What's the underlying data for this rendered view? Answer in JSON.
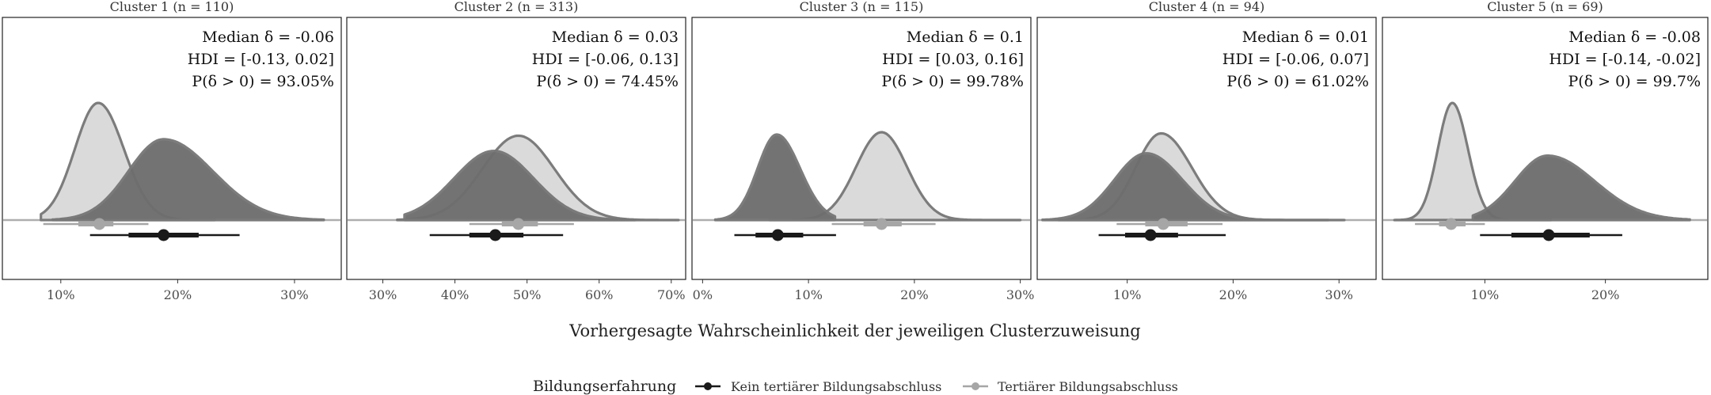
{
  "chart_data": {
    "type": "area",
    "x_axis_title": "Vorhergesagte Wahrscheinlichkeit der jeweiligen Clusterzuweisung",
    "legend": {
      "title": "Bildungserfahrung",
      "placement": "bottom",
      "entries": [
        {
          "label": "Kein tertiärer Bildungsabschluss",
          "color": "#1a1a1a"
        },
        {
          "label": "Tertiärer Bildungsabschluss",
          "color": "#a6a6a6"
        }
      ]
    },
    "colors": {
      "kein_fill": "#6e6e6e",
      "tertiaer_fill": "#d9d9d9",
      "density_outline": "#777777",
      "kein_point": "#1a1a1a",
      "tertiaer_point": "#a6a6a6"
    },
    "panels": [
      {
        "title": "Cluster 1 (n = 110)",
        "annotations": [
          "Median δ = -0.06",
          "HDI = [-0.13, 0.02]",
          "P(δ > 0) = 93.05%"
        ],
        "xlim": [
          5,
          34
        ],
        "xticks": [
          10,
          20,
          30
        ],
        "xtick_labels": [
          "10%",
          "20%",
          "30%"
        ],
        "series": [
          {
            "name": "Tertiärer Bildungsabschluss",
            "peak": 13.2,
            "sd_left": 2.0,
            "sd_right": 2.2,
            "rel_height": 1.0,
            "range": [
              8.3,
              23.2
            ],
            "interval_outer": [
              8.5,
              17.5
            ],
            "interval_inner": [
              11.5,
              14.5
            ],
            "median": 13.3
          },
          {
            "name": "Kein tertiärer Bildungsabschluss",
            "peak": 18.8,
            "sd_left": 3.0,
            "sd_right": 4.2,
            "rel_height": 0.69,
            "range": [
              9.3,
              32.5
            ],
            "interval_outer": [
              12.5,
              25.3
            ],
            "interval_inner": [
              15.8,
              21.8
            ],
            "median": 18.8
          }
        ]
      },
      {
        "title": "Cluster 2 (n = 313)",
        "annotations": [
          "Median δ = 0.03",
          "HDI = [-0.06, 0.13]",
          "P(δ > 0) = 74.45%"
        ],
        "xlim": [
          25,
          72
        ],
        "xticks": [
          30,
          40,
          50,
          60,
          70
        ],
        "xtick_labels": [
          "30%",
          "40%",
          "50%",
          "60%",
          "70%"
        ],
        "series": [
          {
            "name": "Tertiärer Bildungsabschluss",
            "peak": 48.8,
            "sd_left": 5.0,
            "sd_right": 5.0,
            "rel_height": 0.72,
            "range": [
              32.0,
              71.0
            ],
            "interval_outer": [
              42.0,
              56.5
            ],
            "interval_inner": [
              46.5,
              51.5
            ],
            "median": 48.8
          },
          {
            "name": "Kein tertiärer Bildungsabschluss",
            "peak": 45.4,
            "sd_left": 5.5,
            "sd_right": 5.5,
            "rel_height": 0.59,
            "range": [
              33.0,
              65.0
            ],
            "interval_outer": [
              36.5,
              55.0
            ],
            "interval_inner": [
              42.0,
              49.5
            ],
            "median": 45.6
          }
        ]
      },
      {
        "title": "Cluster 3 (n = 115)",
        "annotations": [
          "Median δ = 0.1",
          "HDI = [0.03, 0.16]",
          "P(δ > 0) = 99.78%"
        ],
        "xlim": [
          -1,
          31
        ],
        "xticks": [
          0,
          10,
          20,
          30
        ],
        "xtick_labels": [
          "0%",
          "10%",
          "20%",
          "30%"
        ],
        "series": [
          {
            "name": "Tertiärer Bildungsabschluss",
            "peak": 16.9,
            "sd_left": 2.4,
            "sd_right": 2.4,
            "rel_height": 0.75,
            "range": [
              6.3,
              30.0
            ],
            "interval_outer": [
              12.2,
              22.0
            ],
            "interval_inner": [
              15.2,
              18.8
            ],
            "median": 16.9
          },
          {
            "name": "Kein tertiärer Bildungsabschluss",
            "peak": 7.0,
            "sd_left": 1.8,
            "sd_right": 2.2,
            "rel_height": 0.73,
            "range": [
              1.2,
              12.5
            ],
            "interval_outer": [
              3.0,
              12.6
            ],
            "interval_inner": [
              5.0,
              9.5
            ],
            "median": 7.1
          }
        ]
      },
      {
        "title": "Cluster 4 (n = 94)",
        "annotations": [
          "Median δ = 0.01",
          "HDI = [-0.06, 0.07]",
          "P(δ > 0) = 61.02%"
        ],
        "xlim": [
          1.5,
          33.5
        ],
        "xticks": [
          10,
          20,
          30
        ],
        "xtick_labels": [
          "10%",
          "20%",
          "30%"
        ],
        "series": [
          {
            "name": "Tertiärer Bildungsabschluss",
            "peak": 13.2,
            "sd_left": 2.4,
            "sd_right": 2.9,
            "rel_height": 0.74,
            "range": [
              3.5,
              30.5
            ],
            "interval_outer": [
              9.0,
              19.0
            ],
            "interval_inner": [
              11.7,
              15.7
            ],
            "median": 13.4
          },
          {
            "name": "Kein tertiärer Bildungsabschluss",
            "peak": 11.8,
            "sd_left": 3.0,
            "sd_right": 3.4,
            "rel_height": 0.57,
            "range": [
              2.0,
              29.0
            ],
            "interval_outer": [
              7.3,
              19.3
            ],
            "interval_inner": [
              9.8,
              14.8
            ],
            "median": 12.2
          }
        ]
      },
      {
        "title": "Cluster 5 (n = 69)",
        "annotations": [
          "Median δ = -0.08",
          "HDI = [-0.14, -0.02]",
          "P(δ > 0) = 99.7%"
        ],
        "xlim": [
          1.5,
          28.5
        ],
        "xticks": [
          10,
          20
        ],
        "xtick_labels": [
          "10%",
          "20%"
        ],
        "series": [
          {
            "name": "Tertiärer Bildungsabschluss",
            "peak": 7.3,
            "sd_left": 1.2,
            "sd_right": 1.3,
            "rel_height": 1.0,
            "range": [
              2.5,
              15.5
            ],
            "interval_outer": [
              4.2,
              10.0
            ],
            "interval_inner": [
              6.2,
              8.4
            ],
            "median": 7.2
          },
          {
            "name": "Kein tertiärer Bildungsabschluss",
            "peak": 15.2,
            "sd_left": 2.7,
            "sd_right": 3.9,
            "rel_height": 0.55,
            "range": [
              9.0,
              27.0
            ],
            "interval_outer": [
              9.6,
              21.4
            ],
            "interval_inner": [
              12.2,
              18.7
            ],
            "median": 15.3
          }
        ]
      }
    ]
  }
}
